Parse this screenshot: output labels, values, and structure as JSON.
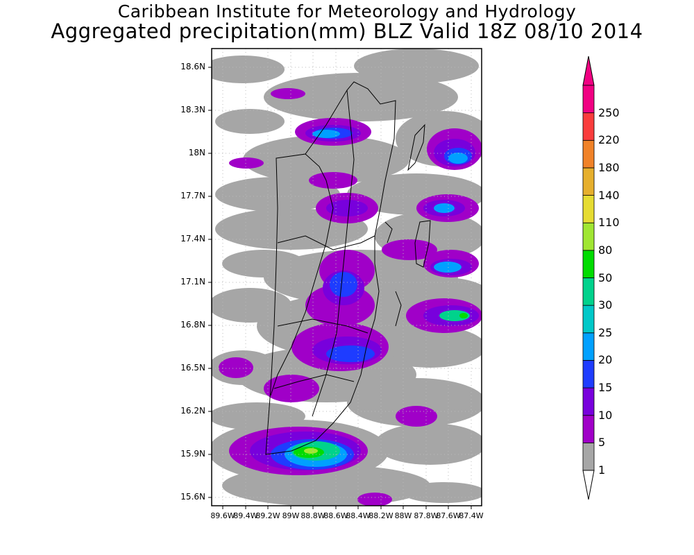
{
  "header": {
    "title": "Caribbean Institute for Meteorology and Hydrology",
    "subtitle": "Aggregated precipitation(mm) BLZ Valid 18Z 08/10 2014"
  },
  "axes": {
    "lat_labels": [
      "18.6N",
      "18.3N",
      "18N",
      "17.7N",
      "17.4N",
      "17.1N",
      "16.8N",
      "16.5N",
      "16.2N",
      "15.9N",
      "15.6N"
    ],
    "lon_labels": [
      "89.6W",
      "89.4W",
      "89.2W",
      "89W",
      "88.8W",
      "88.6W",
      "88.4W",
      "88.2W",
      "88W",
      "87.8W",
      "87.6W",
      "87.4W"
    ]
  },
  "colorbar": {
    "bins": [
      {
        "label": "1",
        "color": "#a6a6a6"
      },
      {
        "label": "5",
        "color": "#a000c8"
      },
      {
        "label": "10",
        "color": "#7800dc"
      },
      {
        "label": "15",
        "color": "#1e3cff"
      },
      {
        "label": "20",
        "color": "#00a0ff"
      },
      {
        "label": "25",
        "color": "#00c8c8"
      },
      {
        "label": "30",
        "color": "#00d28c"
      },
      {
        "label": "50",
        "color": "#00dc00"
      },
      {
        "label": "80",
        "color": "#a0e632"
      },
      {
        "label": "110",
        "color": "#e6dc32"
      },
      {
        "label": "140",
        "color": "#e6af2d"
      },
      {
        "label": "180",
        "color": "#f08228"
      },
      {
        "label": "220",
        "color": "#fa3c3c"
      },
      {
        "label": "250",
        "color": "#f00082"
      }
    ],
    "under_color": "#ffffff",
    "over_color": "#f00082"
  }
}
